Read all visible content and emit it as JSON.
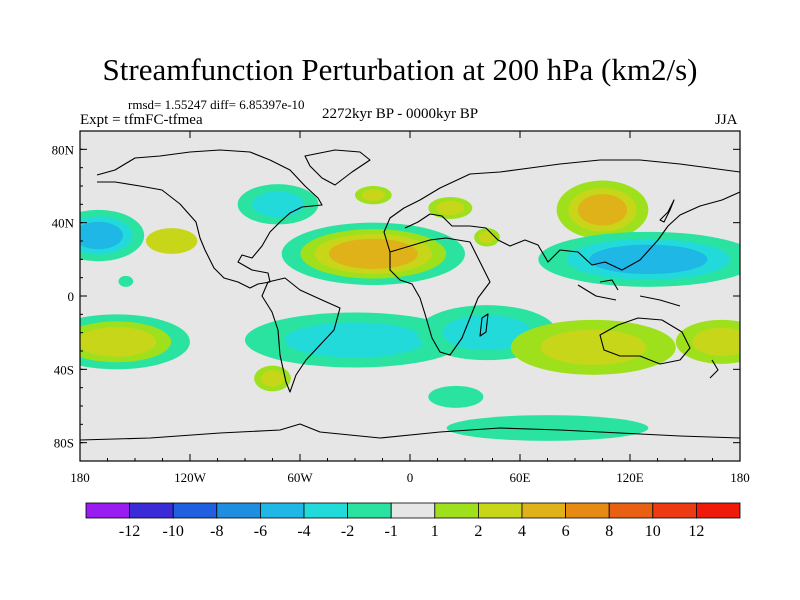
{
  "chart_data": {
    "type": "map-contour",
    "title": "Streamfunction Perturbation at 200 hPa (km2/s)",
    "stats_line": "rmsd= 1.55247 diff= 6.85397e-10",
    "experiment": "Expt = tfmFC-tfmea",
    "period": "2272kyr BP - 0000kyr BP",
    "season": "JJA",
    "x_ticks": [
      {
        "lon": -180,
        "label": "180"
      },
      {
        "lon": -120,
        "label": "120W"
      },
      {
        "lon": -60,
        "label": "60W"
      },
      {
        "lon": 0,
        "label": "0"
      },
      {
        "lon": 60,
        "label": "60E"
      },
      {
        "lon": 120,
        "label": "120E"
      },
      {
        "lon": 180,
        "label": "180"
      }
    ],
    "y_ticks": [
      {
        "lat": 80,
        "label": "80N"
      },
      {
        "lat": 40,
        "label": "40N"
      },
      {
        "lat": 0,
        "label": "0"
      },
      {
        "lat": -40,
        "label": "40S"
      },
      {
        "lat": -80,
        "label": "80S"
      }
    ],
    "xlim": [
      -180,
      180
    ],
    "ylim": [
      -90,
      90
    ],
    "colorbar": {
      "colors": [
        "#9a1cf0",
        "#3a2bd6",
        "#1f5fe0",
        "#1e8fe0",
        "#1fb7e6",
        "#22dada",
        "#2ae3a0",
        "#e6e6e6",
        "#9ee01c",
        "#c8d61a",
        "#e0b21a",
        "#e68a14",
        "#ea6012",
        "#ec3a12",
        "#f01a0a"
      ],
      "labels": [
        "-12",
        "-10",
        "-8",
        "-6",
        "-4",
        "-2",
        "-1",
        "1",
        "2",
        "4",
        "6",
        "8",
        "10",
        "12"
      ]
    },
    "anomalies": [
      {
        "lon": -170,
        "lat": 33,
        "rlon": 25,
        "rlat": 14,
        "levels": [
          -1,
          -2,
          -4
        ]
      },
      {
        "lon": -130,
        "lat": 30,
        "rlon": 14,
        "rlat": 7,
        "levels": [
          2
        ]
      },
      {
        "lon": -155,
        "lat": 8,
        "rlon": 4,
        "rlat": 3,
        "levels": [
          -1
        ]
      },
      {
        "lon": -72,
        "lat": 50,
        "rlon": 22,
        "rlat": 11,
        "levels": [
          -1,
          -2
        ]
      },
      {
        "lon": -20,
        "lat": 23,
        "rlon": 50,
        "rlat": 17,
        "levels": [
          -1,
          1,
          2,
          4
        ]
      },
      {
        "lon": -20,
        "lat": 55,
        "rlon": 10,
        "rlat": 5,
        "levels": [
          1,
          2
        ]
      },
      {
        "lon": 22,
        "lat": 48,
        "rlon": 12,
        "rlat": 6,
        "levels": [
          1,
          2
        ]
      },
      {
        "lon": 42,
        "lat": 32,
        "rlon": 7,
        "rlat": 5,
        "levels": [
          1,
          2
        ]
      },
      {
        "lon": 105,
        "lat": 47,
        "rlon": 25,
        "rlat": 16,
        "levels": [
          1,
          2,
          4
        ]
      },
      {
        "lon": 130,
        "lat": 20,
        "rlon": 60,
        "rlat": 15,
        "levels": [
          -1,
          -2,
          -4
        ]
      },
      {
        "lon": -160,
        "lat": -25,
        "rlon": 40,
        "rlat": 15,
        "levels": [
          -1,
          1,
          2
        ]
      },
      {
        "lon": -30,
        "lat": -24,
        "rlon": 60,
        "rlat": 15,
        "levels": [
          -1,
          -2
        ]
      },
      {
        "lon": 42,
        "lat": -20,
        "rlon": 38,
        "rlat": 15,
        "levels": [
          -1,
          -2
        ]
      },
      {
        "lon": -75,
        "lat": -45,
        "rlon": 10,
        "rlat": 7,
        "levels": [
          1,
          2
        ]
      },
      {
        "lon": 100,
        "lat": -28,
        "rlon": 45,
        "rlat": 15,
        "levels": [
          1,
          2
        ]
      },
      {
        "lon": 170,
        "lat": -25,
        "rlon": 25,
        "rlat": 12,
        "levels": [
          1,
          2
        ]
      },
      {
        "lon": 25,
        "lat": -55,
        "rlon": 15,
        "rlat": 6,
        "levels": [
          -1
        ]
      },
      {
        "lon": 75,
        "lat": -72,
        "rlon": 55,
        "rlat": 7,
        "levels": [
          -1
        ]
      }
    ]
  }
}
